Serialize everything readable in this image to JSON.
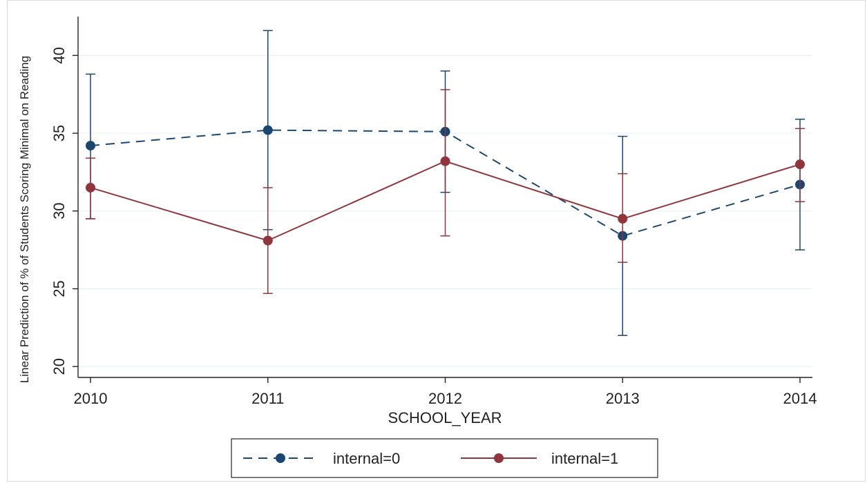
{
  "chart_data": {
    "type": "line",
    "title": "",
    "xlabel": "SCHOOL_YEAR",
    "ylabel": "Linear Prediction of % of Students Scoring Minimal on Reading",
    "x": [
      2010,
      2011,
      2012,
      2013,
      2014
    ],
    "x_tick_labels": [
      "2010",
      "2011",
      "2012",
      "2013",
      "2014"
    ],
    "y_ticks": [
      20,
      25,
      30,
      35,
      40
    ],
    "y_tick_labels": [
      "20",
      "25",
      "30",
      "35",
      "40"
    ],
    "xlim": [
      2010,
      2014
    ],
    "ylim": [
      19.3,
      42.5
    ],
    "grid": "horizontal",
    "legend_position": "bottom",
    "series": [
      {
        "name": "internal=0",
        "color": "#1a476f",
        "line_style": "dashed",
        "values": [
          34.2,
          35.2,
          35.1,
          28.4,
          31.7
        ],
        "ci_low": [
          29.5,
          28.8,
          31.2,
          22.0,
          27.5
        ],
        "ci_high": [
          38.8,
          41.6,
          39.0,
          34.8,
          35.9
        ]
      },
      {
        "name": "internal=1",
        "color": "#90353b",
        "line_style": "solid",
        "values": [
          31.5,
          28.1,
          33.2,
          29.5,
          33.0
        ],
        "ci_low": [
          29.5,
          24.7,
          28.4,
          26.7,
          30.6
        ],
        "ci_high": [
          33.4,
          31.5,
          37.8,
          32.4,
          35.3
        ]
      }
    ]
  }
}
